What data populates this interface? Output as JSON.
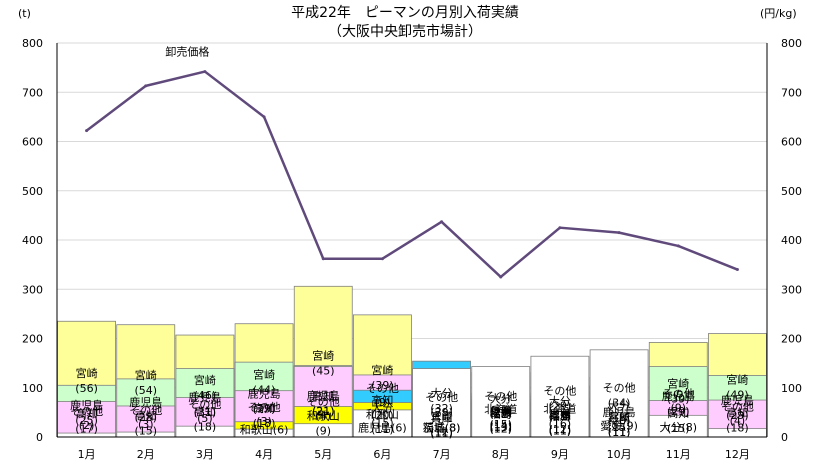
{
  "chart_data": {
    "type": "bar",
    "stacked": true,
    "title": "平成22年　ピーマンの月別入荷実績",
    "subtitle": "（大阪中央卸売市場計）",
    "left_unit": "(t)",
    "right_unit": "(円/kg)",
    "ylim": [
      0,
      800
    ],
    "y2lim": [
      0,
      800
    ],
    "yticks": [
      "0",
      "100",
      "200",
      "300",
      "400",
      "500",
      "600",
      "700",
      "800"
    ],
    "y2ticks": [
      "0",
      "100",
      "200",
      "300",
      "400",
      "500",
      "600",
      "700",
      "800"
    ],
    "grid": true,
    "categories": [
      "1月",
      "2月",
      "3月",
      "4月",
      "5月",
      "6月",
      "7月",
      "8月",
      "9月",
      "10月",
      "11月",
      "12月"
    ],
    "colors": {
      "宮崎": "#ffff99",
      "鹿児島": "#ccffcc",
      "高知": "#ffccff",
      "和歌山": "#ffff00",
      "大分": "#33ccff",
      "茨城": "#ccffff",
      "福島": "#ffc000",
      "兵庫": "#b1a0c7",
      "北海道": "#66ff99",
      "愛媛": "#c4bd97",
      "その他": "#ffffff"
    },
    "months": [
      {
        "segments": [
          {
            "name": "宮崎",
            "value": 235,
            "label": "(56)"
          },
          {
            "name": "鹿児島",
            "value": 105,
            "label": "(25)"
          },
          {
            "name": "高知",
            "value": 72,
            "label": "(17)"
          },
          {
            "name": "その他",
            "value": 8,
            "label": "(2)"
          }
        ]
      },
      {
        "segments": [
          {
            "name": "宮崎",
            "value": 228,
            "label": "(54)"
          },
          {
            "name": "鹿児島",
            "value": 118,
            "label": "(28)"
          },
          {
            "name": "高知",
            "value": 63,
            "label": "(15)"
          },
          {
            "name": "その他",
            "value": 10,
            "label": "(3)"
          }
        ]
      },
      {
        "segments": [
          {
            "name": "宮崎",
            "value": 207,
            "label": "(46)"
          },
          {
            "name": "鹿児島",
            "value": 139,
            "label": "(31)"
          },
          {
            "name": "高知",
            "value": 80,
            "label": "(18)"
          },
          {
            "name": "その他",
            "value": 22,
            "label": "(5)"
          }
        ]
      },
      {
        "segments": [
          {
            "name": "宮崎",
            "value": 230,
            "label": "(44)"
          },
          {
            "name": "鹿児島",
            "value": 152,
            "label": "(29)"
          },
          {
            "name": "高知",
            "value": 94,
            "label": "(18)"
          },
          {
            "name": "和歌山",
            "value": 31,
            "label": "(6)"
          },
          {
            "name": "その他",
            "value": 16,
            "label": "(3)"
          }
        ]
      },
      {
        "segments": [
          {
            "name": "宮崎",
            "value": 306,
            "label": "(45)"
          },
          {
            "name": "鹿児島",
            "value": 145,
            "label": "(21)"
          },
          {
            "name": "高知",
            "value": 143,
            "label": "(21)"
          },
          {
            "name": "和歌山",
            "value": 62,
            "label": "(9)"
          },
          {
            "name": "その他",
            "value": 27,
            "label": "(4)"
          }
        ]
      },
      {
        "segments": [
          {
            "name": "宮崎",
            "value": 248,
            "label": "(39)"
          },
          {
            "name": "高知",
            "value": 126,
            "label": "(20)"
          },
          {
            "name": "大分",
            "value": 95,
            "label": "(15)"
          },
          {
            "name": "和歌山",
            "value": 70,
            "label": "(11)"
          },
          {
            "name": "鹿児島",
            "value": 38,
            "label": "(6)"
          },
          {
            "name": "その他",
            "value": 55,
            "label": "(9)"
          }
        ]
      },
      {
        "segments": [
          {
            "name": "大分",
            "value": 154,
            "label": "(32)"
          },
          {
            "name": "宮崎",
            "value": 58,
            "label": "(12)"
          },
          {
            "name": "兵庫",
            "value": 53,
            "label": "(11)"
          },
          {
            "name": "福島",
            "value": 38,
            "label": "(8)"
          },
          {
            "name": "茨城",
            "value": 38,
            "label": "(8)"
          },
          {
            "name": "その他",
            "value": 139,
            "label": "(29)"
          }
        ]
      },
      {
        "segments": [
          {
            "name": "大分",
            "value": 131,
            "label": "(22)"
          },
          {
            "name": "北海道",
            "value": 89,
            "label": "(15)"
          },
          {
            "name": "兵庫",
            "value": 83,
            "label": "(14)"
          },
          {
            "name": "愛媛",
            "value": 77,
            "label": "(13)"
          },
          {
            "name": "福島",
            "value": 71,
            "label": "(12)"
          },
          {
            "name": "その他",
            "value": 143,
            "label": "(24)"
          }
        ]
      },
      {
        "segments": [
          {
            "name": "大分",
            "value": 121,
            "label": "(21)"
          },
          {
            "name": "北海道",
            "value": 92,
            "label": "(16)"
          },
          {
            "name": "愛媛",
            "value": 69,
            "label": "(12)"
          },
          {
            "name": "兵庫",
            "value": 63,
            "label": "(11)"
          },
          {
            "name": "福島",
            "value": 63,
            "label": "(11)"
          },
          {
            "name": "その他",
            "value": 164,
            "label": "(29)"
          }
        ]
      },
      {
        "segments": [
          {
            "name": "大分",
            "value": 104,
            "label": "(20)"
          },
          {
            "name": "鹿児島",
            "value": 78,
            "label": "(15)"
          },
          {
            "name": "兵庫",
            "value": 57,
            "label": "(11)"
          },
          {
            "name": "宮崎",
            "value": 57,
            "label": "(11)"
          },
          {
            "name": "愛媛",
            "value": 47,
            "label": "(9)"
          },
          {
            "name": "その他",
            "value": 177,
            "label": "(34)"
          }
        ]
      },
      {
        "segments": [
          {
            "name": "宮崎",
            "value": 192,
            "label": "(39)"
          },
          {
            "name": "鹿児島",
            "value": 143,
            "label": "(29)"
          },
          {
            "name": "高知",
            "value": 74,
            "label": "(15)"
          },
          {
            "name": "大分",
            "value": 40,
            "label": "(8)"
          },
          {
            "name": "その他",
            "value": 44,
            "label": "(9)"
          }
        ]
      },
      {
        "segments": [
          {
            "name": "宮崎",
            "value": 210,
            "label": "(49)"
          },
          {
            "name": "鹿児島",
            "value": 125,
            "label": "(29)"
          },
          {
            "name": "高知",
            "value": 75,
            "label": "(18)"
          },
          {
            "name": "その他",
            "value": 17,
            "label": "(4)"
          }
        ]
      }
    ],
    "price_series": {
      "name": "卸売価格",
      "values": [
        622,
        713,
        742,
        650,
        362,
        362,
        437,
        325,
        425,
        415,
        388,
        340
      ]
    }
  }
}
